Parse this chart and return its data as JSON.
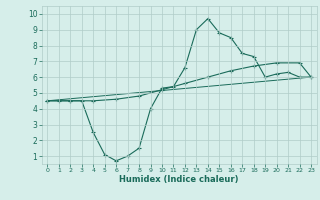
{
  "xlabel": "Humidex (Indice chaleur)",
  "xlim": [
    -0.5,
    23.5
  ],
  "ylim": [
    0.5,
    10.5
  ],
  "xticks": [
    0,
    1,
    2,
    3,
    4,
    5,
    6,
    7,
    8,
    9,
    10,
    11,
    12,
    13,
    14,
    15,
    16,
    17,
    18,
    19,
    20,
    21,
    22,
    23
  ],
  "yticks": [
    1,
    2,
    3,
    4,
    5,
    6,
    7,
    8,
    9,
    10
  ],
  "bg_color": "#d6eeea",
  "grid_color": "#b0ccc8",
  "line_color": "#1a6b5a",
  "line1_x": [
    0,
    1,
    2,
    3,
    4,
    5,
    6,
    7,
    8,
    9,
    10,
    11,
    12,
    13,
    14,
    15,
    16,
    17,
    18,
    19,
    20,
    21,
    22,
    23
  ],
  "line1_y": [
    4.5,
    4.5,
    4.5,
    4.5,
    2.5,
    1.1,
    0.7,
    1.0,
    1.5,
    4.0,
    5.3,
    5.4,
    6.6,
    9.0,
    9.7,
    8.8,
    8.5,
    7.5,
    7.3,
    6.0,
    6.2,
    6.3,
    6.0,
    6.0
  ],
  "line1_marker_x": [
    0,
    1,
    2,
    3,
    4,
    5,
    6,
    7,
    8,
    9,
    10,
    11,
    12,
    13,
    14,
    15,
    16,
    17,
    18,
    19,
    20,
    21,
    22,
    23
  ],
  "line1_marker_y": [
    4.5,
    4.5,
    4.5,
    4.5,
    2.5,
    1.1,
    0.7,
    1.0,
    1.5,
    4.0,
    5.3,
    5.4,
    6.6,
    9.0,
    9.7,
    8.8,
    8.5,
    7.5,
    7.3,
    6.0,
    6.2,
    6.3,
    6.0,
    6.0
  ],
  "line2_x": [
    0,
    2,
    4,
    6,
    8,
    10,
    12,
    14,
    16,
    18,
    20,
    22,
    23
  ],
  "line2_y": [
    4.5,
    4.5,
    4.5,
    4.6,
    4.8,
    5.2,
    5.6,
    6.0,
    6.4,
    6.7,
    6.9,
    6.9,
    6.0
  ],
  "line3_x": [
    0,
    23
  ],
  "line3_y": [
    4.5,
    6.0
  ]
}
